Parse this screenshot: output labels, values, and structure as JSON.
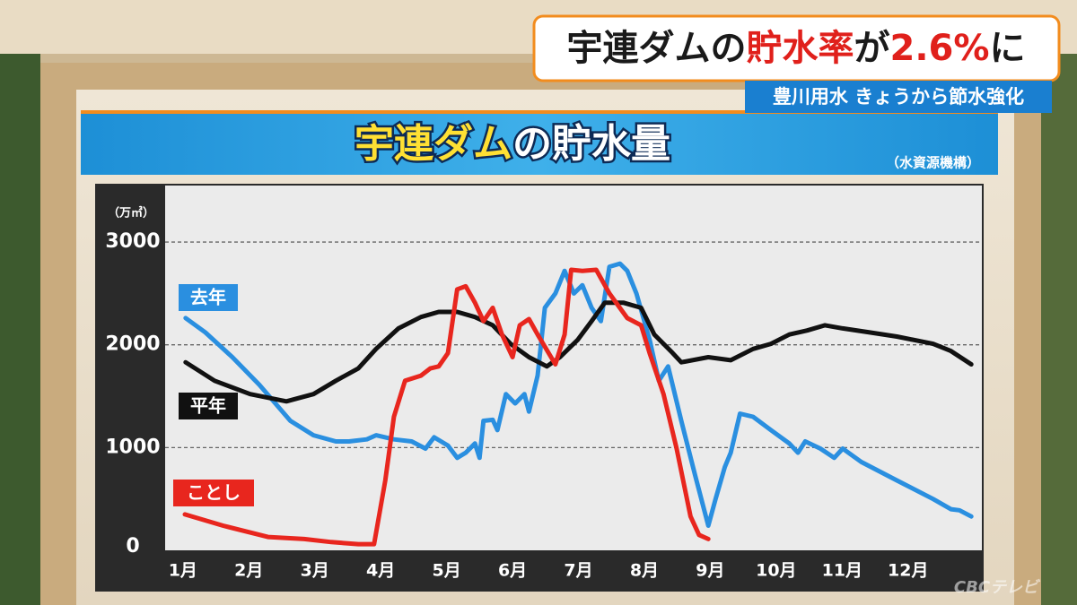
{
  "banner": {
    "headline": [
      {
        "text": "宇連ダムの",
        "color": "#1a1a1a"
      },
      {
        "text": "貯水率",
        "color": "#e0201b"
      },
      {
        "text": "が",
        "color": "#1a1a1a"
      },
      {
        "text": "2.6%",
        "color": "#e0201b"
      },
      {
        "text": "に",
        "color": "#1a1a1a"
      }
    ],
    "subhead": "豊川用水 きょうから節水強化"
  },
  "logo": "CBCテレビ",
  "chart_data": {
    "type": "line",
    "title": [
      {
        "text": "宇連ダム",
        "color": "#ffe033"
      },
      {
        "text": "の貯水量",
        "color": "#ffffff"
      }
    ],
    "source": "（水資源機構）",
    "y_label": "（万㎥）",
    "xlim": [
      0.73,
      13.12
    ],
    "xticks": [
      {
        "value": 1,
        "label": "1月"
      },
      {
        "value": 2,
        "label": "2月"
      },
      {
        "value": 3,
        "label": "3月"
      },
      {
        "value": 4,
        "label": "4月"
      },
      {
        "value": 5,
        "label": "5月"
      },
      {
        "value": 6,
        "label": "6月"
      },
      {
        "value": 7,
        "label": "7月"
      },
      {
        "value": 8,
        "label": "8月"
      },
      {
        "value": 9,
        "label": "9月"
      },
      {
        "value": 10,
        "label": "10月"
      },
      {
        "value": 11,
        "label": "11月"
      },
      {
        "value": 12,
        "label": "12月"
      }
    ],
    "ylim": [
      0,
      3550
    ],
    "yticks": [
      0,
      1000,
      2000,
      3000
    ],
    "grid": true,
    "series": [
      {
        "name": "去年",
        "color": "#2a8fe0",
        "x": [
          1.04,
          1.34,
          1.75,
          2.16,
          2.63,
          2.98,
          3.32,
          3.52,
          3.79,
          3.93,
          4.2,
          4.47,
          4.68,
          4.81,
          5.02,
          5.16,
          5.29,
          5.43,
          5.5,
          5.56,
          5.7,
          5.77,
          5.9,
          6.04,
          6.18,
          6.25,
          6.38,
          6.49,
          6.65,
          6.79,
          6.93,
          7.06,
          7.2,
          7.34,
          7.47,
          7.63,
          7.74,
          7.88,
          8.08,
          8.22,
          8.36,
          8.56,
          8.77,
          8.97,
          9.08,
          9.22,
          9.31,
          9.45,
          9.65,
          9.92,
          10.2,
          10.33,
          10.44,
          10.67,
          10.88,
          11.01,
          11.29,
          11.83,
          12.38,
          12.65,
          12.78,
          12.96
        ],
        "values": [
          2260,
          2120,
          1880,
          1610,
          1260,
          1120,
          1060,
          1060,
          1080,
          1120,
          1080,
          1060,
          990,
          1100,
          1020,
          900,
          950,
          1040,
          900,
          1260,
          1270,
          1170,
          1520,
          1430,
          1520,
          1350,
          1700,
          2360,
          2500,
          2720,
          2500,
          2580,
          2360,
          2230,
          2760,
          2790,
          2720,
          2500,
          2050,
          1650,
          1790,
          1260,
          730,
          240,
          500,
          810,
          950,
          1330,
          1300,
          1170,
          1040,
          950,
          1060,
          990,
          900,
          990,
          860,
          680,
          500,
          400,
          390,
          330
        ]
      },
      {
        "name": "平年",
        "color": "#111111",
        "x": [
          1.04,
          1.48,
          2.02,
          2.57,
          2.98,
          3.32,
          3.66,
          3.93,
          4.27,
          4.61,
          4.88,
          5.16,
          5.43,
          5.7,
          5.97,
          6.25,
          6.52,
          6.72,
          6.99,
          7.2,
          7.4,
          7.68,
          7.95,
          8.15,
          8.43,
          8.56,
          8.97,
          9.31,
          9.65,
          9.92,
          10.2,
          10.47,
          10.74,
          11.01,
          11.42,
          11.83,
          12.38,
          12.65,
          12.96
        ],
        "values": [
          1830,
          1650,
          1520,
          1450,
          1520,
          1650,
          1770,
          1960,
          2160,
          2270,
          2320,
          2320,
          2270,
          2190,
          2010,
          1880,
          1790,
          1880,
          2050,
          2230,
          2410,
          2410,
          2360,
          2100,
          1920,
          1830,
          1880,
          1850,
          1960,
          2010,
          2100,
          2140,
          2190,
          2160,
          2120,
          2080,
          2010,
          1940,
          1810
        ]
      },
      {
        "name": "ことし",
        "color": "#e8261e",
        "x": [
          1.03,
          1.61,
          2.29,
          2.84,
          3.25,
          3.66,
          3.9,
          4.07,
          4.2,
          4.37,
          4.61,
          4.75,
          4.88,
          5.02,
          5.16,
          5.29,
          5.43,
          5.56,
          5.7,
          5.84,
          6.0,
          6.11,
          6.25,
          6.38,
          6.65,
          6.79,
          6.89,
          7.06,
          7.27,
          7.47,
          7.74,
          7.95,
          8.08,
          8.29,
          8.49,
          8.7,
          8.83,
          8.97
        ],
        "values": [
          350,
          240,
          130,
          110,
          80,
          60,
          60,
          680,
          1300,
          1650,
          1700,
          1770,
          1790,
          1920,
          2540,
          2570,
          2410,
          2230,
          2360,
          2100,
          1880,
          2190,
          2250,
          2100,
          1810,
          2100,
          2730,
          2720,
          2730,
          2500,
          2260,
          2190,
          1920,
          1520,
          990,
          330,
          150,
          110
        ]
      }
    ]
  }
}
